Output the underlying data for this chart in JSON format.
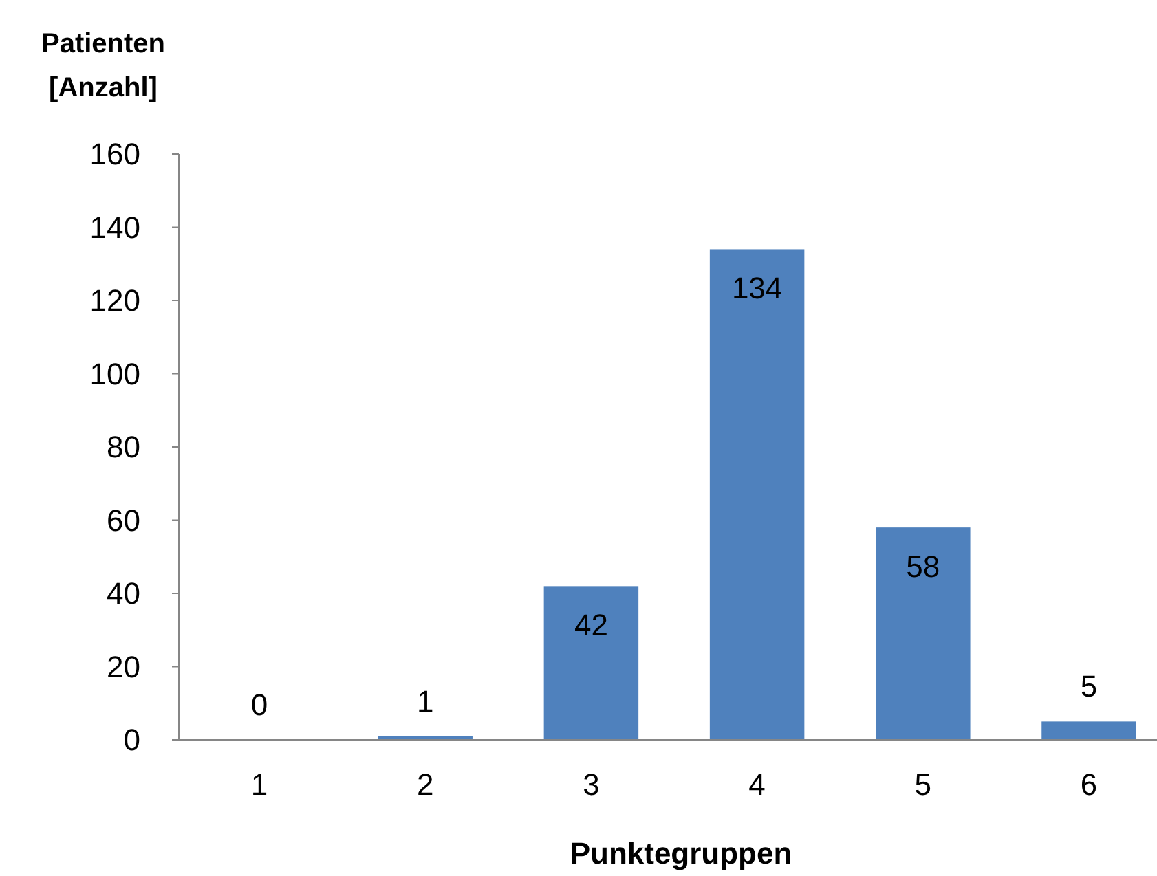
{
  "chart_data": {
    "type": "bar",
    "ylabel": "Patienten [Anzahl]",
    "xlabel": "Punktegruppen",
    "categories": [
      "1",
      "2",
      "3",
      "4",
      "5",
      "6"
    ],
    "values": [
      0,
      1,
      42,
      134,
      58,
      5
    ],
    "color": "#4f81bd",
    "ylim": [
      0,
      160
    ],
    "yticks": [
      0,
      20,
      40,
      60,
      80,
      100,
      120,
      140,
      160
    ],
    "grid": false,
    "data_labels": true
  }
}
